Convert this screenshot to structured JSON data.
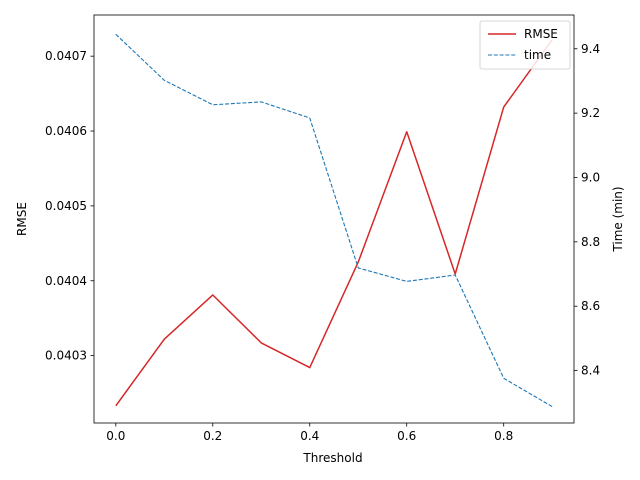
{
  "chart_data": {
    "type": "line",
    "xlabel": "Threshold",
    "ylabel_left": "RMSE",
    "ylabel_right": "Time (min)",
    "x": [
      0.0,
      0.1,
      0.2,
      0.3,
      0.4,
      0.5,
      0.6,
      0.7,
      0.8,
      0.9
    ],
    "xlim": [
      -0.045,
      0.945
    ],
    "ylim_left": [
      0.04021,
      0.040755
    ],
    "ylim_right": [
      8.237,
      9.505
    ],
    "x_ticks": [
      0.0,
      0.2,
      0.4,
      0.6,
      0.8
    ],
    "x_tick_labels": [
      "0.0",
      "0.2",
      "0.4",
      "0.6",
      "0.8"
    ],
    "y_left_ticks": [
      0.0403,
      0.0404,
      0.0405,
      0.0406,
      0.0407
    ],
    "y_left_tick_labels": [
      "0.0403",
      "0.0404",
      "0.0405",
      "0.0406",
      "0.0407"
    ],
    "y_right_ticks": [
      8.4,
      8.6,
      8.8,
      9.0,
      9.2,
      9.4
    ],
    "y_right_tick_labels": [
      "8.4",
      "8.6",
      "8.8",
      "9.0",
      "9.2",
      "9.4"
    ],
    "grid": false,
    "legend_position": "top-right",
    "series": [
      {
        "name": "RMSE",
        "axis": "left",
        "color": "#d62728",
        "style": "solid",
        "values": [
          0.040233,
          0.040322,
          0.040381,
          0.040317,
          0.040284,
          0.040425,
          0.040599,
          0.040409,
          0.040632,
          0.040722
        ]
      },
      {
        "name": "time",
        "axis": "right",
        "color": "#1f77b4",
        "style": "dashed",
        "values": [
          9.445,
          9.302,
          9.226,
          9.235,
          9.185,
          8.719,
          8.677,
          8.697,
          8.376,
          8.288
        ]
      }
    ]
  }
}
